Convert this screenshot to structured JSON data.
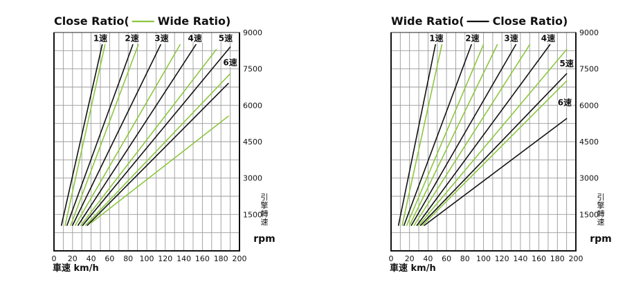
{
  "colors": {
    "close": "#111111",
    "wide": "#8cc63f",
    "grid": "#9a9a9a",
    "background": "#ffffff"
  },
  "x_axis_label": "車速 km/h",
  "y_axis_label_vertical": [
    "引",
    "擎",
    "轉",
    "速"
  ],
  "y_axis_unit": "rpm",
  "chart_data": [
    {
      "type": "line",
      "title_left": "Close Ratio(",
      "title_right": "Wide Ratio)",
      "xlim": [
        0,
        200
      ],
      "ylim": [
        0,
        9000
      ],
      "xticks": [
        0,
        20,
        40,
        60,
        80,
        100,
        120,
        140,
        160,
        180,
        200
      ],
      "yticks": [
        1500,
        3000,
        4500,
        6000,
        7500,
        9000
      ],
      "grid": true,
      "gear_labels": [
        {
          "text": "1速",
          "x": 50,
          "y": 8650
        },
        {
          "text": "2速",
          "x": 84,
          "y": 8650
        },
        {
          "text": "3速",
          "x": 116,
          "y": 8650
        },
        {
          "text": "4速",
          "x": 152,
          "y": 8650
        },
        {
          "text": "5速",
          "x": 185,
          "y": 8650
        },
        {
          "text": "6速",
          "x": 190,
          "y": 7650
        }
      ],
      "series": [
        {
          "style": "close",
          "x": [
            8,
            52
          ],
          "y": [
            1050,
            8500
          ]
        },
        {
          "style": "wide",
          "x": [
            12,
            55
          ],
          "y": [
            1050,
            8500
          ]
        },
        {
          "style": "close",
          "x": [
            14,
            85
          ],
          "y": [
            1050,
            8500
          ]
        },
        {
          "style": "wide",
          "x": [
            18,
            91
          ],
          "y": [
            1050,
            8500
          ]
        },
        {
          "style": "close",
          "x": [
            20,
            115
          ],
          "y": [
            1050,
            8500
          ]
        },
        {
          "style": "wide",
          "x": [
            23,
            136
          ],
          "y": [
            1050,
            8500
          ]
        },
        {
          "style": "close",
          "x": [
            26,
            153
          ],
          "y": [
            1050,
            8500
          ]
        },
        {
          "style": "wide",
          "x": [
            29,
            175
          ],
          "y": [
            1050,
            8300
          ]
        },
        {
          "style": "close",
          "x": [
            31,
            190
          ],
          "y": [
            1050,
            8400
          ]
        },
        {
          "style": "wide",
          "x": [
            34,
            190
          ],
          "y": [
            1050,
            7300
          ]
        },
        {
          "style": "close",
          "x": [
            36,
            188
          ],
          "y": [
            1050,
            6900
          ]
        },
        {
          "style": "wide",
          "x": [
            40,
            188
          ],
          "y": [
            1150,
            5550
          ]
        }
      ]
    },
    {
      "type": "line",
      "title_left": "Wide Ratio(",
      "title_right": "Close Ratio)",
      "xlim": [
        0,
        200
      ],
      "ylim": [
        0,
        9000
      ],
      "xticks": [
        0,
        20,
        40,
        60,
        80,
        100,
        120,
        140,
        160,
        180,
        200
      ],
      "yticks": [
        1500,
        3000,
        4500,
        6000,
        7500,
        9000
      ],
      "grid": true,
      "gear_labels": [
        {
          "text": "1速",
          "x": 49,
          "y": 8650
        },
        {
          "text": "2速",
          "x": 88,
          "y": 8650
        },
        {
          "text": "3速",
          "x": 130,
          "y": 8650
        },
        {
          "text": "4速",
          "x": 170,
          "y": 8650
        },
        {
          "text": "5速",
          "x": 190,
          "y": 7600
        },
        {
          "text": "6速",
          "x": 188,
          "y": 6000
        }
      ],
      "series": [
        {
          "style": "close",
          "x": [
            8,
            48
          ],
          "y": [
            1050,
            8500
          ]
        },
        {
          "style": "wide",
          "x": [
            12,
            55
          ],
          "y": [
            1050,
            8500
          ]
        },
        {
          "style": "close",
          "x": [
            14,
            87
          ],
          "y": [
            1050,
            8500
          ]
        },
        {
          "style": "wide",
          "x": [
            17,
            100
          ],
          "y": [
            1050,
            8500
          ]
        },
        {
          "style": "wide",
          "x": [
            20,
            115
          ],
          "y": [
            1050,
            8500
          ]
        },
        {
          "style": "close",
          "x": [
            22,
            135
          ],
          "y": [
            1050,
            8500
          ]
        },
        {
          "style": "wide",
          "x": [
            25,
            150
          ],
          "y": [
            1050,
            8500
          ]
        },
        {
          "style": "close",
          "x": [
            28,
            172
          ],
          "y": [
            1050,
            8500
          ]
        },
        {
          "style": "wide",
          "x": [
            30,
            190
          ],
          "y": [
            1050,
            8300
          ]
        },
        {
          "style": "close",
          "x": [
            32,
            190
          ],
          "y": [
            1050,
            7300
          ]
        },
        {
          "style": "wide",
          "x": [
            34,
            190
          ],
          "y": [
            1050,
            7000
          ]
        },
        {
          "style": "close",
          "x": [
            36,
            190
          ],
          "y": [
            1050,
            5450
          ]
        }
      ]
    }
  ]
}
